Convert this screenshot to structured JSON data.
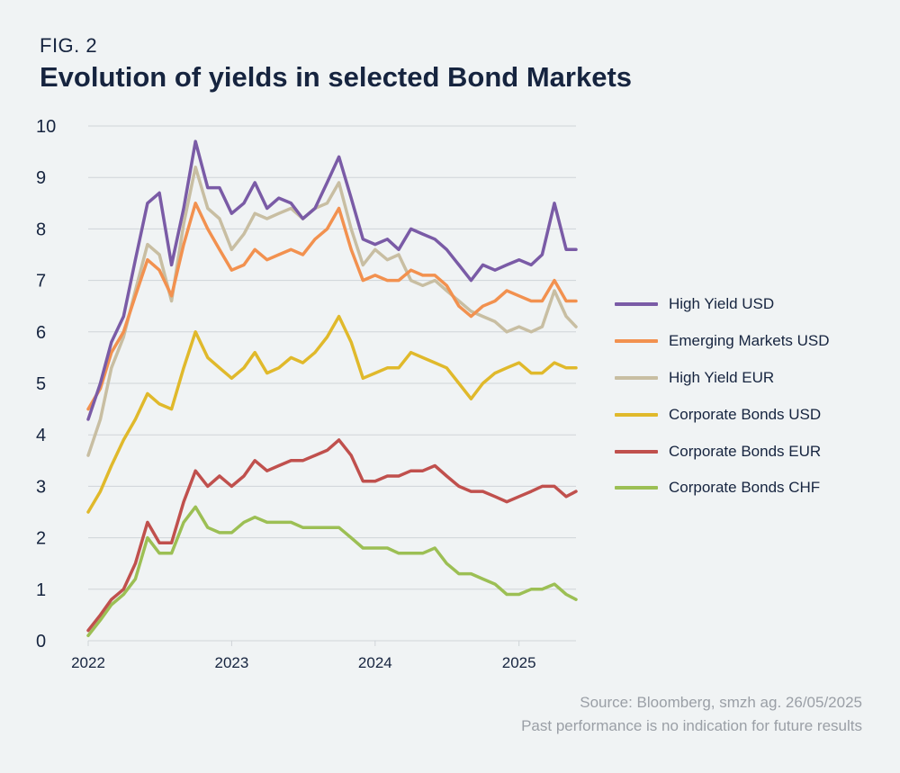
{
  "figure": {
    "label": "FIG. 2",
    "title": "Evolution of yields in selected Bond Markets"
  },
  "source": {
    "line1": "Source: Bloomberg, smzh ag. 26/05/2025",
    "line2": "Past performance is no indication for future results"
  },
  "colors": {
    "background": "#f0f3f4",
    "grid": "#cfd4d8",
    "axis_text": "#16243f"
  },
  "chart_data": {
    "type": "line",
    "title": "Evolution of yields in selected Bond Markets",
    "xlabel": "",
    "ylabel": "",
    "x_ticks": [
      "2022",
      "2023",
      "2024",
      "2025"
    ],
    "x_range": [
      "2022-01-01",
      "2025-05-26"
    ],
    "ylim": [
      0,
      10
    ],
    "y_ticks": [
      0,
      1,
      2,
      3,
      4,
      5,
      6,
      7,
      8,
      9,
      10
    ],
    "grid": true,
    "legend_position": "right",
    "series": [
      {
        "name": "High Yield USD",
        "color": "#7a5ba6",
        "points": [
          [
            "2022-01-01",
            4.3
          ],
          [
            "2022-02-01",
            5.0
          ],
          [
            "2022-03-01",
            5.8
          ],
          [
            "2022-04-01",
            6.3
          ],
          [
            "2022-05-01",
            7.4
          ],
          [
            "2022-06-01",
            8.5
          ],
          [
            "2022-07-01",
            8.7
          ],
          [
            "2022-08-01",
            7.3
          ],
          [
            "2022-09-01",
            8.4
          ],
          [
            "2022-10-01",
            9.7
          ],
          [
            "2022-11-01",
            8.8
          ],
          [
            "2022-12-01",
            8.8
          ],
          [
            "2023-01-01",
            8.3
          ],
          [
            "2023-02-01",
            8.5
          ],
          [
            "2023-03-01",
            8.9
          ],
          [
            "2023-04-01",
            8.4
          ],
          [
            "2023-05-01",
            8.6
          ],
          [
            "2023-06-01",
            8.5
          ],
          [
            "2023-07-01",
            8.2
          ],
          [
            "2023-08-01",
            8.4
          ],
          [
            "2023-09-01",
            8.9
          ],
          [
            "2023-10-01",
            9.4
          ],
          [
            "2023-11-01",
            8.6
          ],
          [
            "2023-12-01",
            7.8
          ],
          [
            "2024-01-01",
            7.7
          ],
          [
            "2024-02-01",
            7.8
          ],
          [
            "2024-03-01",
            7.6
          ],
          [
            "2024-04-01",
            8.0
          ],
          [
            "2024-05-01",
            7.9
          ],
          [
            "2024-06-01",
            7.8
          ],
          [
            "2024-07-01",
            7.6
          ],
          [
            "2024-08-01",
            7.3
          ],
          [
            "2024-09-01",
            7.0
          ],
          [
            "2024-10-01",
            7.3
          ],
          [
            "2024-11-01",
            7.2
          ],
          [
            "2024-12-01",
            7.3
          ],
          [
            "2025-01-01",
            7.4
          ],
          [
            "2025-02-01",
            7.3
          ],
          [
            "2025-03-01",
            7.5
          ],
          [
            "2025-04-01",
            8.5
          ],
          [
            "2025-05-01",
            7.6
          ],
          [
            "2025-05-26",
            7.6
          ]
        ]
      },
      {
        "name": "Emerging Markets USD",
        "color": "#f2914f",
        "points": [
          [
            "2022-01-01",
            4.5
          ],
          [
            "2022-02-01",
            4.9
          ],
          [
            "2022-03-01",
            5.6
          ],
          [
            "2022-04-01",
            6.0
          ],
          [
            "2022-05-01",
            6.7
          ],
          [
            "2022-06-01",
            7.4
          ],
          [
            "2022-07-01",
            7.2
          ],
          [
            "2022-08-01",
            6.7
          ],
          [
            "2022-09-01",
            7.7
          ],
          [
            "2022-10-01",
            8.5
          ],
          [
            "2022-11-01",
            8.0
          ],
          [
            "2022-12-01",
            7.6
          ],
          [
            "2023-01-01",
            7.2
          ],
          [
            "2023-02-01",
            7.3
          ],
          [
            "2023-03-01",
            7.6
          ],
          [
            "2023-04-01",
            7.4
          ],
          [
            "2023-05-01",
            7.5
          ],
          [
            "2023-06-01",
            7.6
          ],
          [
            "2023-07-01",
            7.5
          ],
          [
            "2023-08-01",
            7.8
          ],
          [
            "2023-09-01",
            8.0
          ],
          [
            "2023-10-01",
            8.4
          ],
          [
            "2023-11-01",
            7.6
          ],
          [
            "2023-12-01",
            7.0
          ],
          [
            "2024-01-01",
            7.1
          ],
          [
            "2024-02-01",
            7.0
          ],
          [
            "2024-03-01",
            7.0
          ],
          [
            "2024-04-01",
            7.2
          ],
          [
            "2024-05-01",
            7.1
          ],
          [
            "2024-06-01",
            7.1
          ],
          [
            "2024-07-01",
            6.9
          ],
          [
            "2024-08-01",
            6.5
          ],
          [
            "2024-09-01",
            6.3
          ],
          [
            "2024-10-01",
            6.5
          ],
          [
            "2024-11-01",
            6.6
          ],
          [
            "2024-12-01",
            6.8
          ],
          [
            "2025-01-01",
            6.7
          ],
          [
            "2025-02-01",
            6.6
          ],
          [
            "2025-03-01",
            6.6
          ],
          [
            "2025-04-01",
            7.0
          ],
          [
            "2025-05-01",
            6.6
          ],
          [
            "2025-05-26",
            6.6
          ]
        ]
      },
      {
        "name": "High Yield EUR",
        "color": "#c8bea2",
        "points": [
          [
            "2022-01-01",
            3.6
          ],
          [
            "2022-02-01",
            4.3
          ],
          [
            "2022-03-01",
            5.3
          ],
          [
            "2022-04-01",
            5.9
          ],
          [
            "2022-05-01",
            6.8
          ],
          [
            "2022-06-01",
            7.7
          ],
          [
            "2022-07-01",
            7.5
          ],
          [
            "2022-08-01",
            6.6
          ],
          [
            "2022-09-01",
            8.1
          ],
          [
            "2022-10-01",
            9.2
          ],
          [
            "2022-11-01",
            8.4
          ],
          [
            "2022-12-01",
            8.2
          ],
          [
            "2023-01-01",
            7.6
          ],
          [
            "2023-02-01",
            7.9
          ],
          [
            "2023-03-01",
            8.3
          ],
          [
            "2023-04-01",
            8.2
          ],
          [
            "2023-05-01",
            8.3
          ],
          [
            "2023-06-01",
            8.4
          ],
          [
            "2023-07-01",
            8.2
          ],
          [
            "2023-08-01",
            8.4
          ],
          [
            "2023-09-01",
            8.5
          ],
          [
            "2023-10-01",
            8.9
          ],
          [
            "2023-11-01",
            8.0
          ],
          [
            "2023-12-01",
            7.3
          ],
          [
            "2024-01-01",
            7.6
          ],
          [
            "2024-02-01",
            7.4
          ],
          [
            "2024-03-01",
            7.5
          ],
          [
            "2024-04-01",
            7.0
          ],
          [
            "2024-05-01",
            6.9
          ],
          [
            "2024-06-01",
            7.0
          ],
          [
            "2024-07-01",
            6.8
          ],
          [
            "2024-08-01",
            6.6
          ],
          [
            "2024-09-01",
            6.4
          ],
          [
            "2024-10-01",
            6.3
          ],
          [
            "2024-11-01",
            6.2
          ],
          [
            "2024-12-01",
            6.0
          ],
          [
            "2025-01-01",
            6.1
          ],
          [
            "2025-02-01",
            6.0
          ],
          [
            "2025-03-01",
            6.1
          ],
          [
            "2025-04-01",
            6.8
          ],
          [
            "2025-05-01",
            6.3
          ],
          [
            "2025-05-26",
            6.1
          ]
        ]
      },
      {
        "name": "Corporate Bonds USD",
        "color": "#e0b92b",
        "points": [
          [
            "2022-01-01",
            2.5
          ],
          [
            "2022-02-01",
            2.9
          ],
          [
            "2022-03-01",
            3.4
          ],
          [
            "2022-04-01",
            3.9
          ],
          [
            "2022-05-01",
            4.3
          ],
          [
            "2022-06-01",
            4.8
          ],
          [
            "2022-07-01",
            4.6
          ],
          [
            "2022-08-01",
            4.5
          ],
          [
            "2022-09-01",
            5.3
          ],
          [
            "2022-10-01",
            6.0
          ],
          [
            "2022-11-01",
            5.5
          ],
          [
            "2022-12-01",
            5.3
          ],
          [
            "2023-01-01",
            5.1
          ],
          [
            "2023-02-01",
            5.3
          ],
          [
            "2023-03-01",
            5.6
          ],
          [
            "2023-04-01",
            5.2
          ],
          [
            "2023-05-01",
            5.3
          ],
          [
            "2023-06-01",
            5.5
          ],
          [
            "2023-07-01",
            5.4
          ],
          [
            "2023-08-01",
            5.6
          ],
          [
            "2023-09-01",
            5.9
          ],
          [
            "2023-10-01",
            6.3
          ],
          [
            "2023-11-01",
            5.8
          ],
          [
            "2023-12-01",
            5.1
          ],
          [
            "2024-01-01",
            5.2
          ],
          [
            "2024-02-01",
            5.3
          ],
          [
            "2024-03-01",
            5.3
          ],
          [
            "2024-04-01",
            5.6
          ],
          [
            "2024-05-01",
            5.5
          ],
          [
            "2024-06-01",
            5.4
          ],
          [
            "2024-07-01",
            5.3
          ],
          [
            "2024-08-01",
            5.0
          ],
          [
            "2024-09-01",
            4.7
          ],
          [
            "2024-10-01",
            5.0
          ],
          [
            "2024-11-01",
            5.2
          ],
          [
            "2024-12-01",
            5.3
          ],
          [
            "2025-01-01",
            5.4
          ],
          [
            "2025-02-01",
            5.2
          ],
          [
            "2025-03-01",
            5.2
          ],
          [
            "2025-04-01",
            5.4
          ],
          [
            "2025-05-01",
            5.3
          ],
          [
            "2025-05-26",
            5.3
          ]
        ]
      },
      {
        "name": "Corporate Bonds EUR",
        "color": "#c0504d",
        "points": [
          [
            "2022-01-01",
            0.2
          ],
          [
            "2022-02-01",
            0.5
          ],
          [
            "2022-03-01",
            0.8
          ],
          [
            "2022-04-01",
            1.0
          ],
          [
            "2022-05-01",
            1.5
          ],
          [
            "2022-06-01",
            2.3
          ],
          [
            "2022-07-01",
            1.9
          ],
          [
            "2022-08-01",
            1.9
          ],
          [
            "2022-09-01",
            2.7
          ],
          [
            "2022-10-01",
            3.3
          ],
          [
            "2022-11-01",
            3.0
          ],
          [
            "2022-12-01",
            3.2
          ],
          [
            "2023-01-01",
            3.0
          ],
          [
            "2023-02-01",
            3.2
          ],
          [
            "2023-03-01",
            3.5
          ],
          [
            "2023-04-01",
            3.3
          ],
          [
            "2023-05-01",
            3.4
          ],
          [
            "2023-06-01",
            3.5
          ],
          [
            "2023-07-01",
            3.5
          ],
          [
            "2023-08-01",
            3.6
          ],
          [
            "2023-09-01",
            3.7
          ],
          [
            "2023-10-01",
            3.9
          ],
          [
            "2023-11-01",
            3.6
          ],
          [
            "2023-12-01",
            3.1
          ],
          [
            "2024-01-01",
            3.1
          ],
          [
            "2024-02-01",
            3.2
          ],
          [
            "2024-03-01",
            3.2
          ],
          [
            "2024-04-01",
            3.3
          ],
          [
            "2024-05-01",
            3.3
          ],
          [
            "2024-06-01",
            3.4
          ],
          [
            "2024-07-01",
            3.2
          ],
          [
            "2024-08-01",
            3.0
          ],
          [
            "2024-09-01",
            2.9
          ],
          [
            "2024-10-01",
            2.9
          ],
          [
            "2024-11-01",
            2.8
          ],
          [
            "2024-12-01",
            2.7
          ],
          [
            "2025-01-01",
            2.8
          ],
          [
            "2025-02-01",
            2.9
          ],
          [
            "2025-03-01",
            3.0
          ],
          [
            "2025-04-01",
            3.0
          ],
          [
            "2025-05-01",
            2.8
          ],
          [
            "2025-05-26",
            2.9
          ]
        ]
      },
      {
        "name": "Corporate Bonds CHF",
        "color": "#9cbf54",
        "points": [
          [
            "2022-01-01",
            0.1
          ],
          [
            "2022-02-01",
            0.4
          ],
          [
            "2022-03-01",
            0.7
          ],
          [
            "2022-04-01",
            0.9
          ],
          [
            "2022-05-01",
            1.2
          ],
          [
            "2022-06-01",
            2.0
          ],
          [
            "2022-07-01",
            1.7
          ],
          [
            "2022-08-01",
            1.7
          ],
          [
            "2022-09-01",
            2.3
          ],
          [
            "2022-10-01",
            2.6
          ],
          [
            "2022-11-01",
            2.2
          ],
          [
            "2022-12-01",
            2.1
          ],
          [
            "2023-01-01",
            2.1
          ],
          [
            "2023-02-01",
            2.3
          ],
          [
            "2023-03-01",
            2.4
          ],
          [
            "2023-04-01",
            2.3
          ],
          [
            "2023-05-01",
            2.3
          ],
          [
            "2023-06-01",
            2.3
          ],
          [
            "2023-07-01",
            2.2
          ],
          [
            "2023-08-01",
            2.2
          ],
          [
            "2023-09-01",
            2.2
          ],
          [
            "2023-10-01",
            2.2
          ],
          [
            "2023-11-01",
            2.0
          ],
          [
            "2023-12-01",
            1.8
          ],
          [
            "2024-01-01",
            1.8
          ],
          [
            "2024-02-01",
            1.8
          ],
          [
            "2024-03-01",
            1.7
          ],
          [
            "2024-04-01",
            1.7
          ],
          [
            "2024-05-01",
            1.7
          ],
          [
            "2024-06-01",
            1.8
          ],
          [
            "2024-07-01",
            1.5
          ],
          [
            "2024-08-01",
            1.3
          ],
          [
            "2024-09-01",
            1.3
          ],
          [
            "2024-10-01",
            1.2
          ],
          [
            "2024-11-01",
            1.1
          ],
          [
            "2024-12-01",
            0.9
          ],
          [
            "2025-01-01",
            0.9
          ],
          [
            "2025-02-01",
            1.0
          ],
          [
            "2025-03-01",
            1.0
          ],
          [
            "2025-04-01",
            1.1
          ],
          [
            "2025-05-01",
            0.9
          ],
          [
            "2025-05-26",
            0.8
          ]
        ]
      }
    ]
  }
}
